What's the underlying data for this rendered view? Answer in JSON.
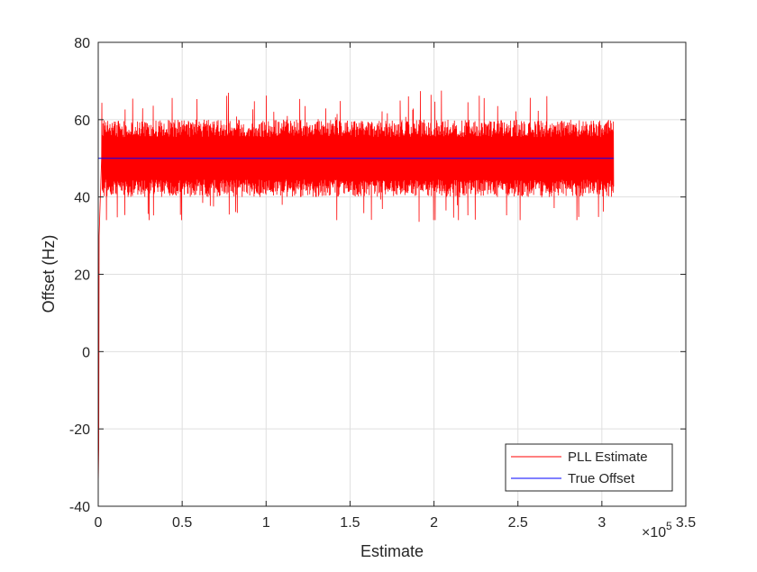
{
  "chart_data": {
    "type": "line",
    "title": "",
    "xlabel": "Estimate",
    "ylabel": "Offset (Hz)",
    "xlim": [
      0,
      350000
    ],
    "ylim": [
      -40,
      80
    ],
    "x_ticks": [
      0,
      50000,
      100000,
      150000,
      200000,
      250000,
      300000,
      350000
    ],
    "x_tick_labels": [
      "0",
      "0.5",
      "1",
      "1.5",
      "2",
      "2.5",
      "3",
      "3.5"
    ],
    "x_exponent_label": "×10",
    "x_exponent_power": "5",
    "y_ticks": [
      -40,
      -20,
      0,
      20,
      40,
      60,
      80
    ],
    "y_tick_labels": [
      "-40",
      "-20",
      "0",
      "20",
      "40",
      "60",
      "80"
    ],
    "grid": true,
    "legend_placement": "bottom-right",
    "series": [
      {
        "name": "PLL Estimate",
        "color": "#ff0000",
        "style": "noisy",
        "start": [
          0,
          -35
        ],
        "settle_x": 2000,
        "x_end": 307000,
        "center": 50,
        "band_typical": [
          40,
          60
        ],
        "band_extreme": [
          34,
          68
        ]
      },
      {
        "name": "True Offset",
        "color": "#0000ff",
        "x": [
          0,
          307000
        ],
        "y": [
          50,
          50
        ]
      }
    ]
  }
}
